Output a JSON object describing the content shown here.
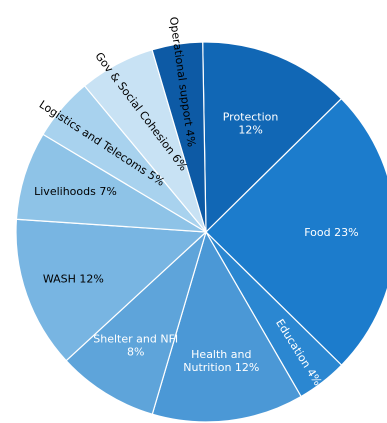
{
  "chart_data": {
    "type": "pie",
    "title": "",
    "unit": "%",
    "slices": [
      {
        "name": "Protection",
        "value": 12,
        "label_lines": [
          "Protection",
          "12%"
        ],
        "color": "#1167b5",
        "text_color": "#ffffff"
      },
      {
        "name": "Food",
        "value": 23,
        "label_lines": [
          "Food 23%"
        ],
        "color": "#1c7ccc",
        "text_color": "#ffffff"
      },
      {
        "name": "Education",
        "value": 4,
        "label_lines": [
          "Education  4%"
        ],
        "color": "#2b87d1",
        "text_color": "#ffffff"
      },
      {
        "name": "Health and Nutrition",
        "value": 12,
        "label_lines": [
          "Health and",
          "Nutrition  12%"
        ],
        "color": "#4b98d6",
        "text_color": "#ffffff"
      },
      {
        "name": "Shelter and NFI",
        "value": 8,
        "label_lines": [
          "Shelter and NFI",
          "8%"
        ],
        "color": "#5ea4da",
        "text_color": "#ffffff"
      },
      {
        "name": "WASH",
        "value": 12,
        "label_lines": [
          "WASH 12%"
        ],
        "color": "#78b5e2",
        "text_color": "#000000"
      },
      {
        "name": "Livelihoods",
        "value": 7,
        "label_lines": [
          "Livelihoods  7%"
        ],
        "color": "#8ec3e7",
        "text_color": "#000000"
      },
      {
        "name": "Logistics and Telecoms",
        "value": 5,
        "label_lines": [
          "Logistics and Telecoms  5%"
        ],
        "color": "#a8d2ee",
        "text_color": "#000000"
      },
      {
        "name": "Gov & Social Cohesion",
        "value": 6,
        "label_lines": [
          "Gov & Social Cohesion  6%"
        ],
        "color": "#c8e2f4",
        "text_color": "#000000"
      },
      {
        "name": "Operational support",
        "value": 4,
        "label_lines": [
          "Operational support  4%"
        ],
        "color": "#0d5aa5",
        "text_color": "#000000"
      }
    ]
  }
}
